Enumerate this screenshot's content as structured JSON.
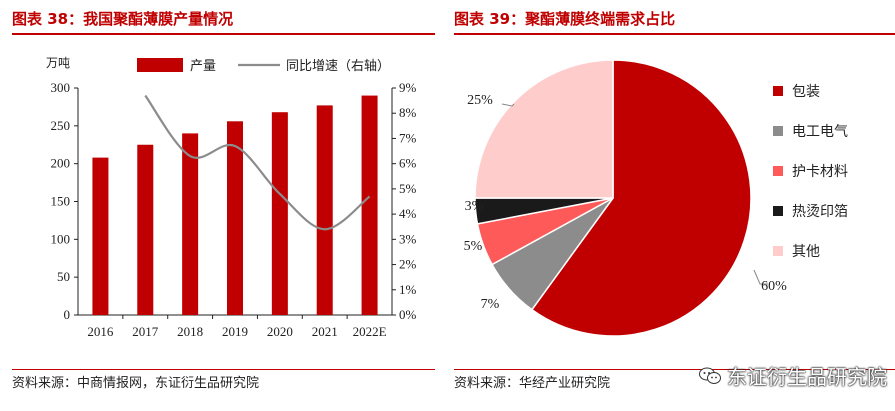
{
  "left_panel": {
    "title": "图表 38：我国聚酯薄膜产量情况",
    "source": "资料来源：中商情报网，东证衍生品研究院",
    "y_unit": "万吨"
  },
  "right_panel": {
    "title": "图表 39：聚酯薄膜终端需求占比",
    "source": "资料来源：华经产业研究院"
  },
  "watermark": "东证衍生品研究院",
  "chart_data": [
    {
      "type": "bar",
      "categories": [
        "2016",
        "2017",
        "2018",
        "2019",
        "2020",
        "2021",
        "2022E"
      ],
      "series": [
        {
          "name": "产量",
          "type": "bar",
          "axis": "left",
          "color": "#c00000",
          "values": [
            208,
            225,
            240,
            256,
            268,
            277,
            290
          ]
        },
        {
          "name": "同比增速（右轴）",
          "type": "line",
          "axis": "right",
          "color": "#8c8c8c",
          "values": [
            null,
            8.7,
            6.3,
            6.7,
            4.8,
            3.4,
            4.7
          ],
          "unit": "%"
        }
      ],
      "ylabel": "万吨",
      "ylim": [
        0,
        300
      ],
      "y_ticks": [
        0,
        50,
        100,
        150,
        200,
        250,
        300
      ],
      "y2lim": [
        0,
        9
      ],
      "y2_ticks": [
        "0%",
        "1%",
        "2%",
        "3%",
        "4%",
        "5%",
        "6%",
        "7%",
        "8%",
        "9%"
      ],
      "legend": "top"
    },
    {
      "type": "pie",
      "labels": [
        "包装",
        "电工电气",
        "护卡材料",
        "热烫印箔",
        "其他"
      ],
      "values": [
        60,
        7,
        5,
        3,
        25
      ],
      "value_labels": [
        "60%",
        "7%",
        "5%",
        "3%",
        "25%"
      ],
      "colors": [
        "#c00000",
        "#8c8c8c",
        "#ff5a5a",
        "#1a1a1a",
        "#ffcccc"
      ],
      "legend": "right"
    }
  ]
}
